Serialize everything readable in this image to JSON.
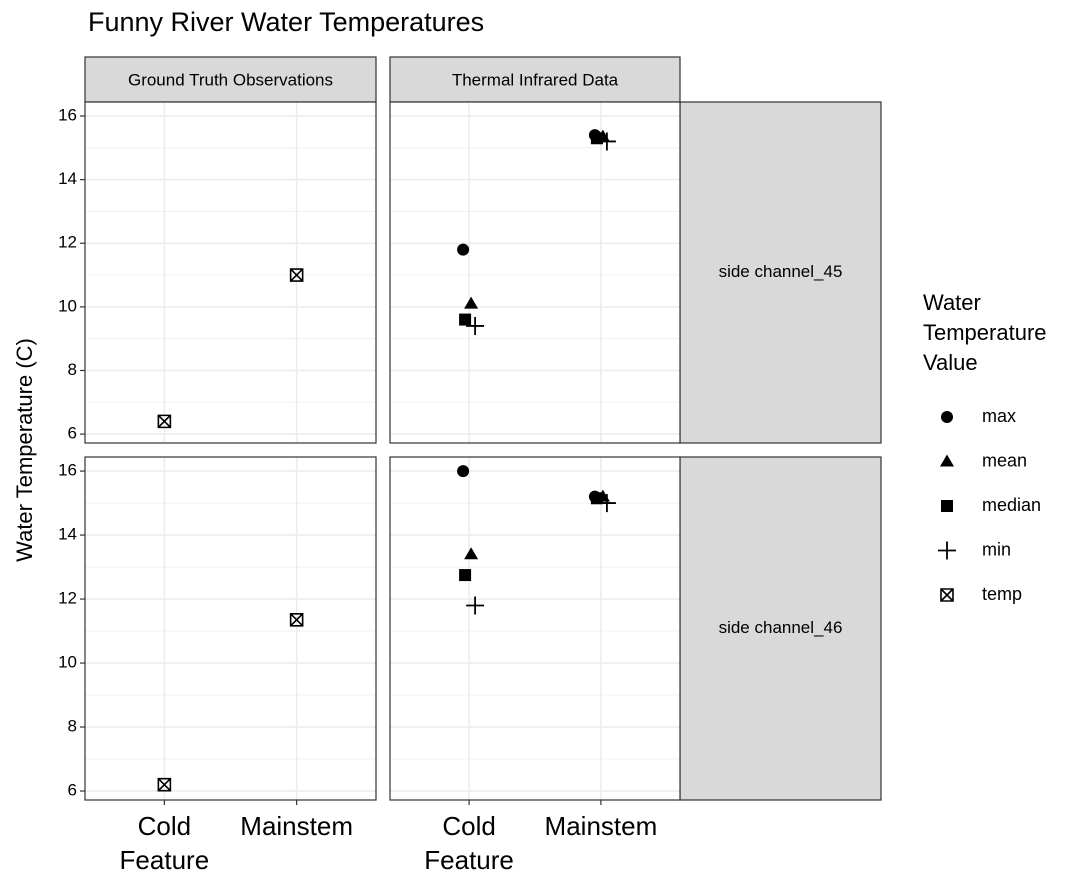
{
  "chart_data": {
    "type": "scatter",
    "title": "Funny River Water Temperatures",
    "y_label": "Water Temperature (C)",
    "columns": [
      "Ground Truth Observations",
      "Thermal Infrared Data"
    ],
    "rows": [
      "side channel_45",
      "side channel_46"
    ],
    "categories": [
      "Cold Feature",
      "Mainstem"
    ],
    "ylim": [
      5.72,
      16.44
    ],
    "yticks": [
      6,
      8,
      10,
      12,
      14,
      16
    ],
    "grid": true,
    "legend_title": "Water Temperature Value",
    "legend_position": "right",
    "series": [
      {
        "name": "max",
        "shape": "circle",
        "color": "#000000",
        "values": [
          [
            null,
            null
          ],
          [
            11.8,
            15.4
          ],
          [
            null,
            null
          ],
          [
            16.0,
            15.2
          ]
        ]
      },
      {
        "name": "mean",
        "shape": "triangle",
        "color": "#000000",
        "values": [
          [
            null,
            null
          ],
          [
            10.1,
            15.35
          ],
          [
            null,
            null
          ],
          [
            13.4,
            15.2
          ]
        ]
      },
      {
        "name": "median",
        "shape": "square",
        "color": "#000000",
        "values": [
          [
            null,
            null
          ],
          [
            9.6,
            15.3
          ],
          [
            null,
            null
          ],
          [
            12.75,
            15.15
          ]
        ]
      },
      {
        "name": "min",
        "shape": "plus",
        "color": "#000000",
        "values": [
          [
            null,
            null
          ],
          [
            9.4,
            15.2
          ],
          [
            null,
            null
          ],
          [
            11.8,
            15.0
          ]
        ]
      },
      {
        "name": "temp",
        "shape": "boxx",
        "color": "#000000",
        "values": [
          [
            6.4,
            11.0
          ],
          [
            null,
            null
          ],
          [
            6.2,
            11.35
          ],
          [
            null,
            null
          ]
        ]
      }
    ]
  }
}
